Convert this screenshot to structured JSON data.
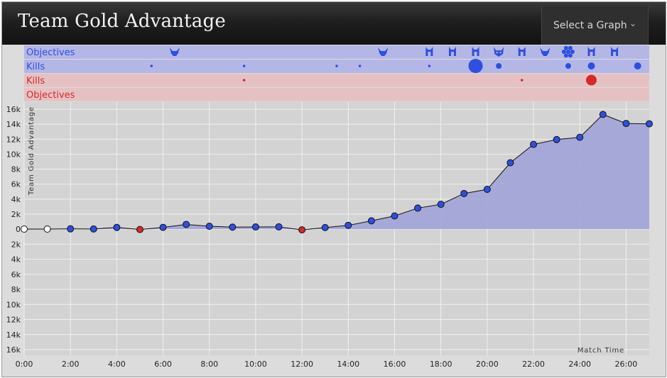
{
  "header": {
    "title": "Team Gold Advantage",
    "select_label": "Select a Graph",
    "chevron_icon": "chevron-down-icon"
  },
  "colors": {
    "blue": "#2e4fe0",
    "red": "#d42a2a",
    "blue_lane": "#b4b6e6",
    "red_lane": "#e6c1c3",
    "area_fill": "#a3a6d8",
    "plot_bg": "#d3d3d3"
  },
  "lanes": [
    {
      "label": "Objectives",
      "team": "blue"
    },
    {
      "label": "Kills",
      "team": "blue"
    },
    {
      "label": "Kills",
      "team": "red"
    },
    {
      "label": "Objectives",
      "team": "red"
    }
  ],
  "events": {
    "blue_objectives": [
      {
        "time": 6.5,
        "icon": "dragon-icon"
      },
      {
        "time": 15.5,
        "icon": "dragon-icon"
      },
      {
        "time": 17.5,
        "icon": "tower-icon"
      },
      {
        "time": 18.5,
        "icon": "tower-icon"
      },
      {
        "time": 19.5,
        "icon": "tower-icon"
      },
      {
        "time": 20.5,
        "icon": "baron-icon"
      },
      {
        "time": 21.5,
        "icon": "tower-icon"
      },
      {
        "time": 22.5,
        "icon": "dragon-icon"
      },
      {
        "time": 23.5,
        "icon": "inhibitor-icon"
      },
      {
        "time": 24.5,
        "icon": "tower-icon"
      },
      {
        "time": 25.5,
        "icon": "tower-icon"
      }
    ],
    "blue_kills": [
      {
        "time": 5.5,
        "count": 1
      },
      {
        "time": 9.5,
        "count": 1
      },
      {
        "time": 13.5,
        "count": 1
      },
      {
        "time": 14.5,
        "count": 1
      },
      {
        "time": 17.5,
        "count": 1
      },
      {
        "time": 19.5,
        "count": 6
      },
      {
        "time": 20.5,
        "count": 2
      },
      {
        "time": 23.5,
        "count": 2
      },
      {
        "time": 24.5,
        "count": 3
      },
      {
        "time": 26.5,
        "count": 3
      }
    ],
    "red_kills": [
      {
        "time": 9.5,
        "count": 1
      },
      {
        "time": 21.5,
        "count": 1
      },
      {
        "time": 24.5,
        "count": 4
      }
    ]
  },
  "chart_data": {
    "type": "area",
    "title": "",
    "xlabel": "Match Time",
    "ylabel": "Team Gold Advantage",
    "xlim": [
      0,
      27
    ],
    "ylim": [
      -16000,
      16000
    ],
    "x_ticks": [
      "0:00",
      "2:00",
      "4:00",
      "6:00",
      "8:00",
      "10:00",
      "12:00",
      "14:00",
      "16:00",
      "18:00",
      "20:00",
      "22:00",
      "24:00",
      "26:00"
    ],
    "x_tick_values": [
      0,
      2,
      4,
      6,
      8,
      10,
      12,
      14,
      16,
      18,
      20,
      22,
      24,
      26
    ],
    "y_ticks": [
      "16k",
      "14k",
      "12k",
      "10k",
      "8k",
      "6k",
      "4k",
      "2k",
      "0",
      "2k",
      "4k",
      "6k",
      "8k",
      "10k",
      "12k",
      "14k",
      "16k"
    ],
    "y_tick_values": [
      16000,
      14000,
      12000,
      10000,
      8000,
      6000,
      4000,
      2000,
      0,
      -2000,
      -4000,
      -6000,
      -8000,
      -10000,
      -12000,
      -14000,
      -16000
    ],
    "grid": true,
    "points": [
      {
        "x": 0,
        "y": 0,
        "side": "none"
      },
      {
        "x": 1,
        "y": 0,
        "side": "none"
      },
      {
        "x": 2,
        "y": 30,
        "side": "blue"
      },
      {
        "x": 3,
        "y": 10,
        "side": "blue"
      },
      {
        "x": 4,
        "y": 220,
        "side": "blue"
      },
      {
        "x": 5,
        "y": -60,
        "side": "red"
      },
      {
        "x": 6,
        "y": 230,
        "side": "blue"
      },
      {
        "x": 7,
        "y": 620,
        "side": "blue"
      },
      {
        "x": 8,
        "y": 380,
        "side": "blue"
      },
      {
        "x": 9,
        "y": 260,
        "side": "blue"
      },
      {
        "x": 10,
        "y": 280,
        "side": "blue"
      },
      {
        "x": 11,
        "y": 300,
        "side": "blue"
      },
      {
        "x": 12,
        "y": -100,
        "side": "red"
      },
      {
        "x": 13,
        "y": 200,
        "side": "blue"
      },
      {
        "x": 14,
        "y": 500,
        "side": "blue"
      },
      {
        "x": 15,
        "y": 1100,
        "side": "blue"
      },
      {
        "x": 16,
        "y": 1750,
        "side": "blue"
      },
      {
        "x": 17,
        "y": 2800,
        "side": "blue"
      },
      {
        "x": 18,
        "y": 3300,
        "side": "blue"
      },
      {
        "x": 19,
        "y": 4750,
        "side": "blue"
      },
      {
        "x": 20,
        "y": 5300,
        "side": "blue"
      },
      {
        "x": 21,
        "y": 8850,
        "side": "blue"
      },
      {
        "x": 22,
        "y": 11300,
        "side": "blue"
      },
      {
        "x": 23,
        "y": 11950,
        "side": "blue"
      },
      {
        "x": 24,
        "y": 12250,
        "side": "blue"
      },
      {
        "x": 25,
        "y": 15300,
        "side": "blue"
      },
      {
        "x": 26,
        "y": 14100,
        "side": "blue"
      },
      {
        "x": 27,
        "y": 14050,
        "side": "blue"
      }
    ]
  }
}
